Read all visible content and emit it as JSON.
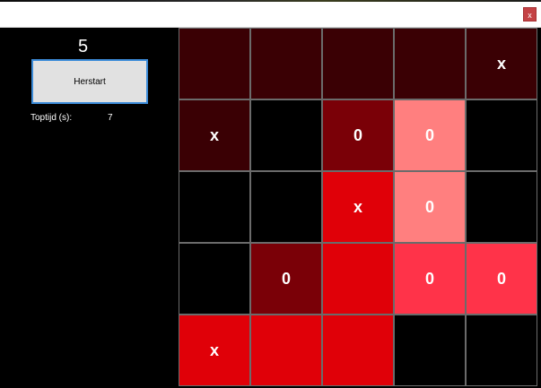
{
  "window": {
    "close_label": "x"
  },
  "panel": {
    "score": "5",
    "restart_label": "Herstart",
    "best_label": "Toptijd (s):",
    "best_value": "7"
  },
  "grid": {
    "rows": [
      [
        {
          "mark": "",
          "color": "#3a0004"
        },
        {
          "mark": "",
          "color": "#3a0004"
        },
        {
          "mark": "",
          "color": "#3a0004"
        },
        {
          "mark": "",
          "color": "#3a0004"
        },
        {
          "mark": "x",
          "color": "#3a0004"
        }
      ],
      [
        {
          "mark": "x",
          "color": "#3a0004"
        },
        {
          "mark": "",
          "color": "#000000"
        },
        {
          "mark": "0",
          "color": "#7a0007"
        },
        {
          "mark": "0",
          "color": "#ff7f7f"
        },
        {
          "mark": "",
          "color": "#000000"
        }
      ],
      [
        {
          "mark": "",
          "color": "#000000"
        },
        {
          "mark": "",
          "color": "#000000"
        },
        {
          "mark": "x",
          "color": "#e00008"
        },
        {
          "mark": "0",
          "color": "#ff7f7f"
        },
        {
          "mark": "",
          "color": "#000000"
        }
      ],
      [
        {
          "mark": "",
          "color": "#000000"
        },
        {
          "mark": "0",
          "color": "#7a0007"
        },
        {
          "mark": "",
          "color": "#e00008"
        },
        {
          "mark": "0",
          "color": "#ff3349"
        },
        {
          "mark": "0",
          "color": "#ff3349"
        }
      ],
      [
        {
          "mark": "x",
          "color": "#e00008"
        },
        {
          "mark": "",
          "color": "#e00008"
        },
        {
          "mark": "",
          "color": "#e00008"
        },
        {
          "mark": "",
          "color": "#000000"
        },
        {
          "mark": "",
          "color": "#000000"
        }
      ]
    ]
  }
}
